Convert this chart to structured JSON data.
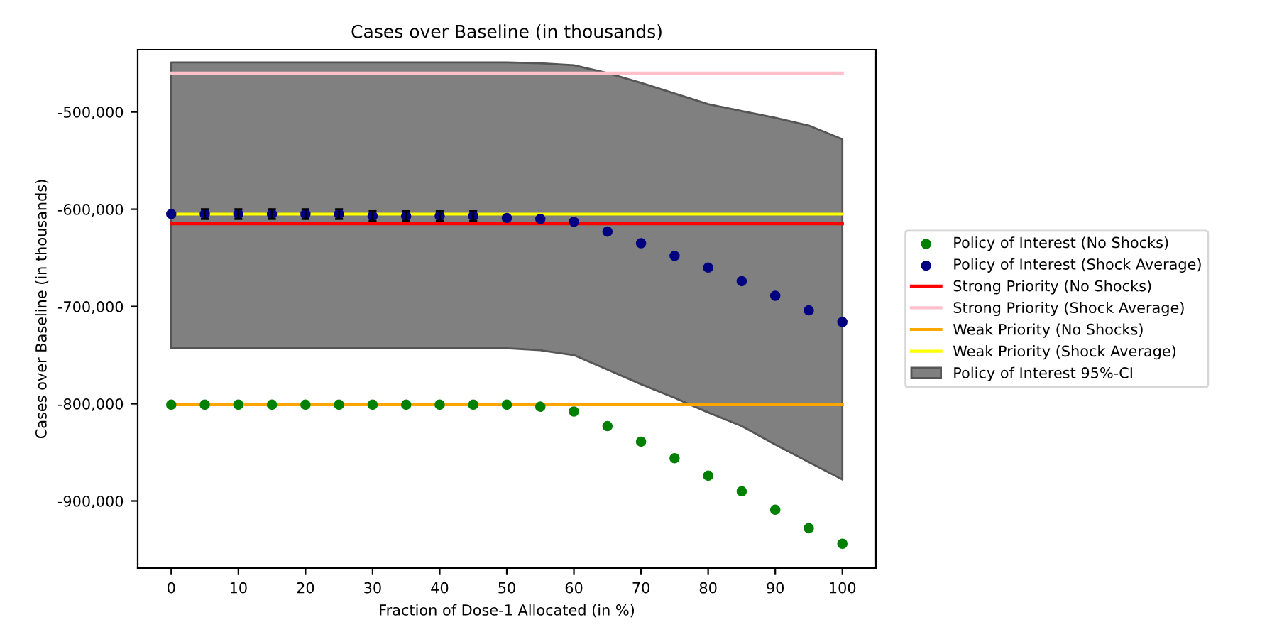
{
  "chart_data": {
    "type": "scatter",
    "title": "Cases over Baseline (in thousands)",
    "xlabel": "Fraction of Dose-1 Allocated (in %)",
    "ylabel": "Cases over Baseline (in thousands)",
    "x": [
      0,
      5,
      10,
      15,
      20,
      25,
      30,
      35,
      40,
      45,
      50,
      55,
      60,
      65,
      70,
      75,
      80,
      85,
      90,
      95,
      100
    ],
    "series": [
      {
        "name": "Policy of Interest (No Shocks)",
        "color": "#008000",
        "marker": "circle",
        "values": [
          -801000,
          -801000,
          -801000,
          -801000,
          -801000,
          -801000,
          -801000,
          -801000,
          -801000,
          -801000,
          -801000,
          -803000,
          -808000,
          -823000,
          -839000,
          -856000,
          -874000,
          -890000,
          -909000,
          -928000,
          -944000
        ]
      },
      {
        "name": "Policy of Interest (Shock Average)",
        "color": "#000080",
        "marker": "circle",
        "values": [
          -605000,
          -605000,
          -605000,
          -605000,
          -605000,
          -605000,
          -607000,
          -607000,
          -607000,
          -607000,
          -609000,
          -610000,
          -613000,
          -623000,
          -635000,
          -648000,
          -660000,
          -674000,
          -689000,
          -704000,
          -716000
        ],
        "errors": [
          null,
          5000,
          5000,
          5000,
          5000,
          5000,
          5000,
          5000,
          5000,
          5000,
          null,
          null,
          null,
          null,
          null,
          null,
          null,
          null,
          null,
          null,
          null
        ]
      },
      {
        "name": "Strong Priority (No Shocks)",
        "type": "line",
        "color": "#ff0000",
        "values": [
          -615000,
          -615000,
          -615000,
          -615000,
          -615000,
          -615000,
          -615000,
          -615000,
          -615000,
          -615000,
          -615000,
          -615000,
          -615000,
          -615000,
          -615000,
          -615000,
          -615000,
          -615000,
          -615000,
          -615000,
          -615000
        ]
      },
      {
        "name": "Strong Priority (Shock Average)",
        "type": "line",
        "color": "#ffc0cb",
        "values": [
          -460000,
          -460000,
          -460000,
          -460000,
          -460000,
          -460000,
          -460000,
          -460000,
          -460000,
          -460000,
          -460000,
          -460000,
          -460000,
          -460000,
          -460000,
          -460000,
          -460000,
          -460000,
          -460000,
          -460000,
          -460000
        ]
      },
      {
        "name": "Weak Priority (No Shocks)",
        "type": "line",
        "color": "#ffa500",
        "values": [
          -801000,
          -801000,
          -801000,
          -801000,
          -801000,
          -801000,
          -801000,
          -801000,
          -801000,
          -801000,
          -801000,
          -801000,
          -801000,
          -801000,
          -801000,
          -801000,
          -801000,
          -801000,
          -801000,
          -801000,
          -801000
        ]
      },
      {
        "name": "Weak Priority (Shock Average)",
        "type": "line",
        "color": "#ffff00",
        "values": [
          -605000,
          -605000,
          -605000,
          -605000,
          -605000,
          -605000,
          -605000,
          -605000,
          -605000,
          -605000,
          -605000,
          -605000,
          -605000,
          -605000,
          -605000,
          -605000,
          -605000,
          -605000,
          -605000,
          -605000,
          -605000
        ]
      },
      {
        "name": "Policy of Interest 95%-CI",
        "type": "line",
        "color": "#808080",
        "values": [
          null,
          null,
          null,
          null,
          null,
          null,
          null,
          null,
          null,
          null,
          null,
          null,
          null,
          null,
          null,
          null,
          null,
          null,
          null,
          null,
          null
        ],
        "lower": [
          -743000,
          -743000,
          -743000,
          -743000,
          -743000,
          -743000,
          -743000,
          -743000,
          -743000,
          -743000,
          -743000,
          -745000,
          -750000,
          -765000,
          -780000,
          -794000,
          -809000,
          -823000,
          -842000,
          -860000,
          -878000
        ],
        "upper": [
          -449000,
          -449000,
          -449000,
          -449000,
          -449000,
          -449000,
          -449000,
          -449000,
          -449000,
          -449000,
          -449000,
          -450000,
          -452000,
          -460000,
          -470000,
          -481000,
          -492000,
          -499000,
          -506000,
          -514000,
          -528000
        ]
      }
    ],
    "xlim": [
      -5,
      105
    ],
    "xticks": [
      0,
      10,
      20,
      30,
      40,
      50,
      60,
      70,
      80,
      90,
      100
    ],
    "ylim": [
      -969000,
      -436000
    ],
    "yticks": [
      {
        "value": -900000,
        "label": "-900,000"
      },
      {
        "value": -800000,
        "label": "-800,000"
      },
      {
        "value": -700000,
        "label": "-700,000"
      },
      {
        "value": -600000,
        "label": "-600,000"
      },
      {
        "value": -500000,
        "label": "-500,000"
      }
    ],
    "grid": false,
    "legend": "right"
  }
}
